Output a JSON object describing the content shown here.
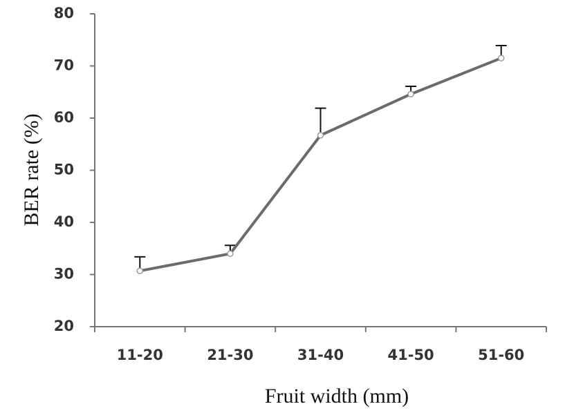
{
  "chart_data": {
    "type": "line",
    "x_label": "Fruit width (mm)",
    "y_label": "BER rate (%)",
    "categories": [
      "11-20",
      "21-30",
      "31-40",
      "41-50",
      "51-60"
    ],
    "series": [
      {
        "color": "#6b6b6b",
        "values": [
          30.7,
          34.0,
          56.7,
          64.6,
          71.5
        ],
        "errors": [
          2.7,
          1.6,
          5.2,
          1.5,
          2.4
        ]
      }
    ],
    "ylim": [
      20,
      80
    ],
    "yticks": [
      20,
      30,
      40,
      50,
      60,
      70,
      80
    ]
  }
}
